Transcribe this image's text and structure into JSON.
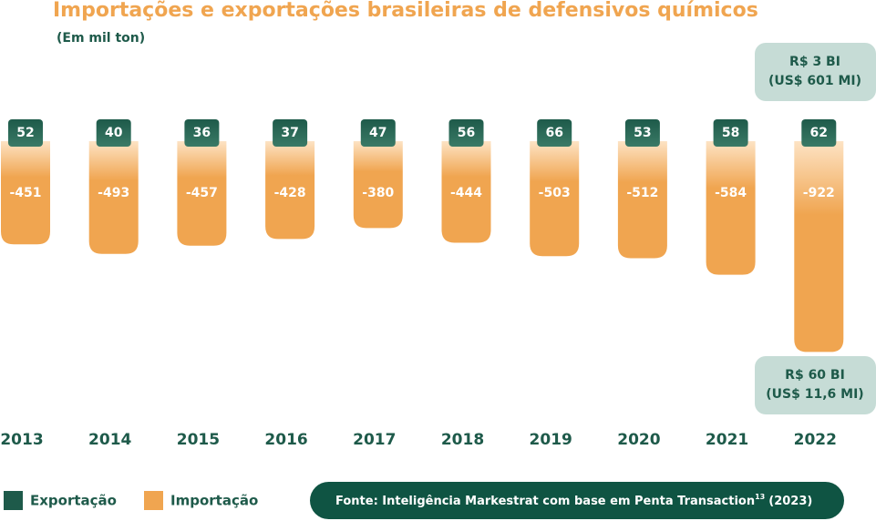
{
  "chart_data": {
    "type": "bar",
    "title": "Importações e exportações brasileiras de defensivos químicos",
    "subtitle": "(Em mil ton)",
    "categories": [
      "2013",
      "2014",
      "2015",
      "2016",
      "2017",
      "2018",
      "2019",
      "2020",
      "2021",
      "2022"
    ],
    "series": [
      {
        "name": "Exportação",
        "color": "#1e5a4a",
        "values": [
          52,
          40,
          36,
          37,
          47,
          56,
          66,
          53,
          58,
          62
        ]
      },
      {
        "name": "Importação",
        "color": "#f0a550",
        "values": [
          -451,
          -493,
          -457,
          -428,
          -380,
          -444,
          -503,
          -512,
          -584,
          -922
        ]
      }
    ],
    "annotations": [
      {
        "lines": [
          "R$ 3 BI",
          "(US$ 601 MI)"
        ]
      },
      {
        "lines": [
          "R$ 60 BI",
          "(US$ 11,6 MI)"
        ]
      }
    ],
    "source": {
      "text": "Fonte: Inteligência Markestrat com base em Penta Transaction",
      "superscript": "13",
      "year": "(2023)"
    }
  }
}
